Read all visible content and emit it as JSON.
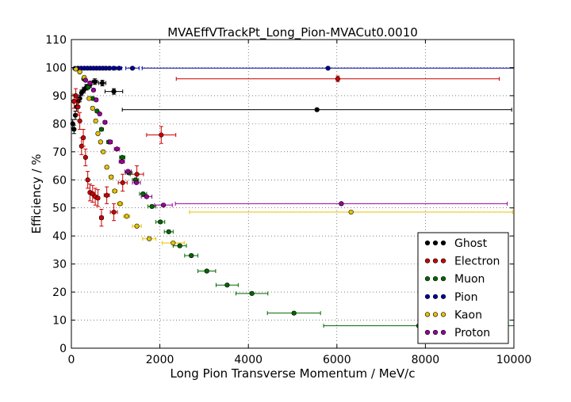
{
  "chart_data": {
    "type": "scatter",
    "title": "MVAEffVTrackPt_Long_Pion-MVACut0.0010",
    "xlabel": "Long Pion Transverse Momentum / MeV/c",
    "ylabel": "Efficiency / %",
    "xlim": [
      0,
      10000
    ],
    "ylim": [
      0,
      110
    ],
    "x_ticks": [
      "0",
      "2000",
      "4000",
      "6000",
      "8000",
      "10000"
    ],
    "y_ticks": [
      "0",
      "10",
      "20",
      "30",
      "40",
      "50",
      "60",
      "70",
      "80",
      "90",
      "100",
      "110"
    ],
    "grid": true,
    "legend_position": "bottom-right",
    "series": [
      {
        "name": "Ghost",
        "color": "#000000",
        "points": [
          {
            "x": 30,
            "y": 80,
            "xerr": 20,
            "yerr": 1.5
          },
          {
            "x": 60,
            "y": 78,
            "xerr": 20,
            "yerr": 1.5
          },
          {
            "x": 90,
            "y": 83,
            "xerr": 20,
            "yerr": 1.5
          },
          {
            "x": 120,
            "y": 86,
            "xerr": 20,
            "yerr": 1.5
          },
          {
            "x": 150,
            "y": 88,
            "xerr": 20,
            "yerr": 1.5
          },
          {
            "x": 190,
            "y": 89,
            "xerr": 20,
            "yerr": 1.2
          },
          {
            "x": 230,
            "y": 91,
            "xerr": 20,
            "yerr": 1.0
          },
          {
            "x": 280,
            "y": 92,
            "xerr": 25,
            "yerr": 1.0
          },
          {
            "x": 340,
            "y": 93,
            "xerr": 30,
            "yerr": 1.0
          },
          {
            "x": 420,
            "y": 94,
            "xerr": 40,
            "yerr": 1.0
          },
          {
            "x": 530,
            "y": 95,
            "xerr": 60,
            "yerr": 1.0
          },
          {
            "x": 700,
            "y": 94.5,
            "xerr": 80,
            "yerr": 1.0
          },
          {
            "x": 960,
            "y": 91.5,
            "xerr": 200,
            "yerr": 1.0
          },
          {
            "x": 5550,
            "y": 85,
            "xerr": 4400,
            "yerr": 0.5
          }
        ]
      },
      {
        "name": "Electron",
        "color": "#cc0000",
        "points": [
          {
            "x": 60,
            "y": 88,
            "xerr": 20,
            "yerr": 2.5
          },
          {
            "x": 100,
            "y": 90,
            "xerr": 20,
            "yerr": 2.5
          },
          {
            "x": 150,
            "y": 86,
            "xerr": 20,
            "yerr": 3
          },
          {
            "x": 190,
            "y": 81,
            "xerr": 20,
            "yerr": 3
          },
          {
            "x": 230,
            "y": 72,
            "xerr": 20,
            "yerr": 3
          },
          {
            "x": 270,
            "y": 75,
            "xerr": 20,
            "yerr": 3
          },
          {
            "x": 320,
            "y": 68,
            "xerr": 25,
            "yerr": 3
          },
          {
            "x": 370,
            "y": 60,
            "xerr": 25,
            "yerr": 3
          },
          {
            "x": 420,
            "y": 55.5,
            "xerr": 25,
            "yerr": 3
          },
          {
            "x": 480,
            "y": 55,
            "xerr": 30,
            "yerr": 3
          },
          {
            "x": 540,
            "y": 54,
            "xerr": 30,
            "yerr": 3
          },
          {
            "x": 600,
            "y": 53.5,
            "xerr": 30,
            "yerr": 3
          },
          {
            "x": 680,
            "y": 46.5,
            "xerr": 40,
            "yerr": 3
          },
          {
            "x": 800,
            "y": 54.5,
            "xerr": 60,
            "yerr": 3
          },
          {
            "x": 960,
            "y": 48.5,
            "xerr": 80,
            "yerr": 3
          },
          {
            "x": 1160,
            "y": 59,
            "xerr": 100,
            "yerr": 3
          },
          {
            "x": 1480,
            "y": 62,
            "xerr": 150,
            "yerr": 3
          },
          {
            "x": 2030,
            "y": 76,
            "xerr": 330,
            "yerr": 3
          },
          {
            "x": 6020,
            "y": 96,
            "xerr": 3650,
            "yerr": 1
          }
        ]
      },
      {
        "name": "Muon",
        "color": "#006600",
        "points": [
          {
            "x": 100,
            "y": 99.5,
            "xerr": 20,
            "yerr": 0.3
          },
          {
            "x": 190,
            "y": 98.5,
            "xerr": 20,
            "yerr": 0.3
          },
          {
            "x": 280,
            "y": 96,
            "xerr": 25,
            "yerr": 0.5
          },
          {
            "x": 380,
            "y": 93,
            "xerr": 30,
            "yerr": 0.5
          },
          {
            "x": 480,
            "y": 89,
            "xerr": 30,
            "yerr": 0.5
          },
          {
            "x": 580,
            "y": 84.5,
            "xerr": 35,
            "yerr": 0.5
          },
          {
            "x": 680,
            "y": 78,
            "xerr": 40,
            "yerr": 0.5
          },
          {
            "x": 850,
            "y": 73.5,
            "xerr": 50,
            "yerr": 0.5
          },
          {
            "x": 1150,
            "y": 68,
            "xerr": 60,
            "yerr": 0.5
          },
          {
            "x": 1300,
            "y": 62.5,
            "xerr": 70,
            "yerr": 0.5
          },
          {
            "x": 1450,
            "y": 60,
            "xerr": 70,
            "yerr": 0.5
          },
          {
            "x": 1620,
            "y": 55,
            "xerr": 80,
            "yerr": 0.5
          },
          {
            "x": 1820,
            "y": 50.5,
            "xerr": 90,
            "yerr": 0.5
          },
          {
            "x": 2010,
            "y": 45,
            "xerr": 100,
            "yerr": 0.5
          },
          {
            "x": 2200,
            "y": 41.5,
            "xerr": 100,
            "yerr": 0.5
          },
          {
            "x": 2450,
            "y": 36.5,
            "xerr": 150,
            "yerr": 0.5
          },
          {
            "x": 2710,
            "y": 33,
            "xerr": 150,
            "yerr": 0.5
          },
          {
            "x": 3060,
            "y": 27.5,
            "xerr": 200,
            "yerr": 0.5
          },
          {
            "x": 3520,
            "y": 22.5,
            "xerr": 250,
            "yerr": 0.5
          },
          {
            "x": 4080,
            "y": 19.5,
            "xerr": 360,
            "yerr": 0.5
          },
          {
            "x": 5030,
            "y": 12.5,
            "xerr": 600,
            "yerr": 0.5
          },
          {
            "x": 7850,
            "y": 8,
            "xerr": 2150,
            "yerr": 0.5
          }
        ]
      },
      {
        "name": "Pion",
        "color": "#000099",
        "points": [
          {
            "x": 80,
            "y": 99.7,
            "xerr": 20,
            "yerr": 0.2
          },
          {
            "x": 150,
            "y": 99.8,
            "xerr": 20,
            "yerr": 0.2
          },
          {
            "x": 220,
            "y": 99.8,
            "xerr": 20,
            "yerr": 0.2
          },
          {
            "x": 290,
            "y": 99.8,
            "xerr": 20,
            "yerr": 0.2
          },
          {
            "x": 360,
            "y": 99.8,
            "xerr": 20,
            "yerr": 0.2
          },
          {
            "x": 430,
            "y": 99.8,
            "xerr": 20,
            "yerr": 0.2
          },
          {
            "x": 500,
            "y": 99.8,
            "xerr": 20,
            "yerr": 0.2
          },
          {
            "x": 570,
            "y": 99.8,
            "xerr": 20,
            "yerr": 0.2
          },
          {
            "x": 640,
            "y": 99.8,
            "xerr": 20,
            "yerr": 0.2
          },
          {
            "x": 710,
            "y": 99.8,
            "xerr": 20,
            "yerr": 0.2
          },
          {
            "x": 780,
            "y": 99.8,
            "xerr": 20,
            "yerr": 0.2
          },
          {
            "x": 860,
            "y": 99.8,
            "xerr": 30,
            "yerr": 0.2
          },
          {
            "x": 960,
            "y": 99.8,
            "xerr": 40,
            "yerr": 0.2
          },
          {
            "x": 1080,
            "y": 99.8,
            "xerr": 60,
            "yerr": 0.2
          },
          {
            "x": 1380,
            "y": 99.8,
            "xerr": 150,
            "yerr": 0.2
          },
          {
            "x": 5800,
            "y": 99.8,
            "xerr": 4200,
            "yerr": 0.1
          }
        ]
      },
      {
        "name": "Kaon",
        "color": "#e6c200",
        "points": [
          {
            "x": 100,
            "y": 99.5,
            "xerr": 20,
            "yerr": 0.3
          },
          {
            "x": 190,
            "y": 98.5,
            "xerr": 20,
            "yerr": 0.3
          },
          {
            "x": 290,
            "y": 96.5,
            "xerr": 25,
            "yerr": 0.5
          },
          {
            "x": 400,
            "y": 89,
            "xerr": 30,
            "yerr": 0.5
          },
          {
            "x": 480,
            "y": 85.5,
            "xerr": 30,
            "yerr": 0.5
          },
          {
            "x": 550,
            "y": 81,
            "xerr": 30,
            "yerr": 0.5
          },
          {
            "x": 600,
            "y": 76.5,
            "xerr": 30,
            "yerr": 0.5
          },
          {
            "x": 660,
            "y": 73.5,
            "xerr": 30,
            "yerr": 0.5
          },
          {
            "x": 720,
            "y": 70,
            "xerr": 30,
            "yerr": 0.5
          },
          {
            "x": 800,
            "y": 64.5,
            "xerr": 40,
            "yerr": 0.5
          },
          {
            "x": 900,
            "y": 61,
            "xerr": 45,
            "yerr": 0.5
          },
          {
            "x": 980,
            "y": 56,
            "xerr": 50,
            "yerr": 0.5
          },
          {
            "x": 1100,
            "y": 51.5,
            "xerr": 60,
            "yerr": 0.5
          },
          {
            "x": 1250,
            "y": 47,
            "xerr": 70,
            "yerr": 0.5
          },
          {
            "x": 1480,
            "y": 43.5,
            "xerr": 100,
            "yerr": 0.5
          },
          {
            "x": 1760,
            "y": 39,
            "xerr": 150,
            "yerr": 0.5
          },
          {
            "x": 2300,
            "y": 37.5,
            "xerr": 250,
            "yerr": 0.5
          },
          {
            "x": 6320,
            "y": 48.5,
            "xerr": 3650,
            "yerr": 0.5
          }
        ]
      },
      {
        "name": "Proton",
        "color": "#990099",
        "points": [
          {
            "x": 320,
            "y": 95.5,
            "xerr": 25,
            "yerr": 0.5
          },
          {
            "x": 420,
            "y": 94.5,
            "xerr": 30,
            "yerr": 0.5
          },
          {
            "x": 500,
            "y": 92,
            "xerr": 30,
            "yerr": 0.5
          },
          {
            "x": 560,
            "y": 88.5,
            "xerr": 30,
            "yerr": 0.5
          },
          {
            "x": 640,
            "y": 83.5,
            "xerr": 35,
            "yerr": 0.5
          },
          {
            "x": 760,
            "y": 80.5,
            "xerr": 40,
            "yerr": 0.5
          },
          {
            "x": 880,
            "y": 73.5,
            "xerr": 45,
            "yerr": 0.5
          },
          {
            "x": 1030,
            "y": 71,
            "xerr": 60,
            "yerr": 0.5
          },
          {
            "x": 1140,
            "y": 66.5,
            "xerr": 60,
            "yerr": 0.5
          },
          {
            "x": 1280,
            "y": 63,
            "xerr": 70,
            "yerr": 0.5
          },
          {
            "x": 1470,
            "y": 59,
            "xerr": 90,
            "yerr": 0.5
          },
          {
            "x": 1700,
            "y": 54,
            "xerr": 120,
            "yerr": 0.5
          },
          {
            "x": 2080,
            "y": 51,
            "xerr": 200,
            "yerr": 0.5
          },
          {
            "x": 6100,
            "y": 51.5,
            "xerr": 3750,
            "yerr": 0.5
          }
        ]
      }
    ]
  }
}
